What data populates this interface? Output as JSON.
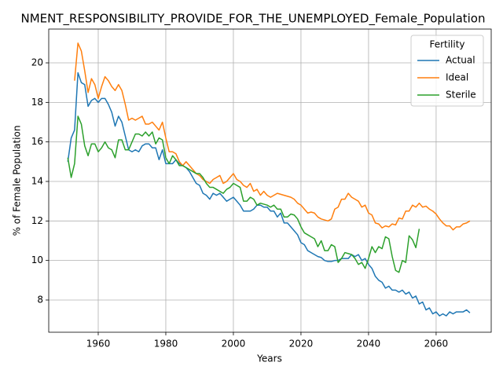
{
  "chart_data": {
    "type": "line",
    "title": "NMENT_RESPONSIBILITY_PROVIDE_FOR_THE_UNEMPLOYED_Female_Population",
    "xlabel": "Years",
    "ylabel": "% of Female Population",
    "legend_title": "Fertility",
    "legend": "upper right",
    "grid": true,
    "xlim": [
      1945.35,
      2076.3
    ],
    "ylim": [
      6.37,
      21.71
    ],
    "xticks": [
      1960,
      1980,
      2000,
      2020,
      2040,
      2060
    ],
    "yticks": [
      8,
      10,
      12,
      14,
      16,
      18,
      20
    ],
    "x": [
      1951,
      1952,
      1953,
      1954,
      1955,
      1956,
      1957,
      1958,
      1959,
      1960,
      1961,
      1962,
      1963,
      1964,
      1965,
      1966,
      1967,
      1968,
      1969,
      1970,
      1971,
      1972,
      1973,
      1974,
      1975,
      1976,
      1977,
      1978,
      1979,
      1980,
      1981,
      1982,
      1983,
      1984,
      1985,
      1986,
      1987,
      1988,
      1989,
      1990,
      1991,
      1992,
      1993,
      1994,
      1995,
      1996,
      1997,
      1998,
      1999,
      2000,
      2001,
      2002,
      2003,
      2004,
      2005,
      2006,
      2007,
      2008,
      2009,
      2010,
      2011,
      2012,
      2013,
      2014,
      2015,
      2016,
      2017,
      2018,
      2019,
      2020,
      2021,
      2022,
      2023,
      2024,
      2025,
      2026,
      2027,
      2028,
      2029,
      2030,
      2031,
      2032,
      2033,
      2034,
      2035,
      2036,
      2037,
      2038,
      2039,
      2040,
      2041,
      2042,
      2043,
      2044,
      2045,
      2046,
      2047,
      2048,
      2049,
      2050,
      2051,
      2052,
      2053,
      2054,
      2055,
      2056,
      2057,
      2058,
      2059,
      2060,
      2061,
      2062,
      2063,
      2064,
      2065,
      2066,
      2067,
      2068,
      2069,
      2070
    ],
    "series": [
      {
        "name": "Actual",
        "color": "#1f77b4",
        "values": [
          15.0,
          16.2,
          16.6,
          19.5,
          19.0,
          18.9,
          17.8,
          18.1,
          18.2,
          18.0,
          18.2,
          18.2,
          17.9,
          17.5,
          16.8,
          17.3,
          17.0,
          16.3,
          15.6,
          15.5,
          15.6,
          15.5,
          15.8,
          15.9,
          15.9,
          15.7,
          15.7,
          15.1,
          15.6,
          14.9,
          14.9,
          14.9,
          15.1,
          14.9,
          14.8,
          14.7,
          14.5,
          14.2,
          13.9,
          13.8,
          13.4,
          13.3,
          13.1,
          13.4,
          13.3,
          13.4,
          13.2,
          13.0,
          13.1,
          13.2,
          13.0,
          12.8,
          12.5,
          12.5,
          12.5,
          12.6,
          12.8,
          12.8,
          12.7,
          12.7,
          12.5,
          12.5,
          12.2,
          12.4,
          11.9,
          11.9,
          11.7,
          11.5,
          11.3,
          10.9,
          10.8,
          10.5,
          10.4,
          10.3,
          10.2,
          10.15,
          10.0,
          9.95,
          9.95,
          10.0,
          10.0,
          10.1,
          10.1,
          10.1,
          10.3,
          10.2,
          10.3,
          10.0,
          10.1,
          9.8,
          9.6,
          9.2,
          9.0,
          8.9,
          8.6,
          8.7,
          8.5,
          8.5,
          8.4,
          8.5,
          8.3,
          8.4,
          8.1,
          8.2,
          7.8,
          7.9,
          7.5,
          7.6,
          7.3,
          7.4,
          7.2,
          7.3,
          7.2,
          7.4,
          7.3,
          7.4,
          7.4,
          7.4,
          7.5,
          7.35
        ]
      },
      {
        "name": "Ideal",
        "color": "#ff7f0e",
        "values": [
          null,
          null,
          19.1,
          21.0,
          20.6,
          19.6,
          18.5,
          19.2,
          18.9,
          18.2,
          18.8,
          19.3,
          19.1,
          18.8,
          18.6,
          18.9,
          18.6,
          17.9,
          17.1,
          17.2,
          17.1,
          17.2,
          17.3,
          16.9,
          16.9,
          17.0,
          16.8,
          16.6,
          17.0,
          16.2,
          15.5,
          15.5,
          15.4,
          15.0,
          14.8,
          15.0,
          14.8,
          14.6,
          14.4,
          14.3,
          14.1,
          14.0,
          13.9,
          14.1,
          14.2,
          14.3,
          13.9,
          14.0,
          14.2,
          14.4,
          14.1,
          14.0,
          13.8,
          13.7,
          13.9,
          13.5,
          13.6,
          13.3,
          13.5,
          13.3,
          13.2,
          13.3,
          13.4,
          13.35,
          13.3,
          13.25,
          13.2,
          13.1,
          12.9,
          12.8,
          12.6,
          12.4,
          12.45,
          12.4,
          12.2,
          12.1,
          12.05,
          12.0,
          12.1,
          12.6,
          12.7,
          13.1,
          13.1,
          13.4,
          13.2,
          13.1,
          13.0,
          12.7,
          12.8,
          12.4,
          12.3,
          11.9,
          11.85,
          11.65,
          11.75,
          11.7,
          11.85,
          11.8,
          12.15,
          12.1,
          12.5,
          12.5,
          12.8,
          12.7,
          12.9,
          12.7,
          12.75,
          12.6,
          12.5,
          12.35,
          12.1,
          11.9,
          11.75,
          11.75,
          11.55,
          11.7,
          11.7,
          11.85,
          11.9,
          12.0
        ]
      },
      {
        "name": "Sterile",
        "color": "#2ca02c",
        "values": [
          15.2,
          14.2,
          14.9,
          17.3,
          16.9,
          15.8,
          15.3,
          15.9,
          15.9,
          15.5,
          15.7,
          16.0,
          15.7,
          15.6,
          15.2,
          16.1,
          16.1,
          15.6,
          15.6,
          16.0,
          16.4,
          16.4,
          16.3,
          16.5,
          16.3,
          16.5,
          15.9,
          16.2,
          16.1,
          15.2,
          14.9,
          15.3,
          15.1,
          14.8,
          14.8,
          14.7,
          14.6,
          14.5,
          14.4,
          14.4,
          14.2,
          13.9,
          13.7,
          13.7,
          13.6,
          13.5,
          13.4,
          13.6,
          13.7,
          13.9,
          13.8,
          13.7,
          13.0,
          13.0,
          13.2,
          13.1,
          12.8,
          12.9,
          12.85,
          12.8,
          12.7,
          12.8,
          12.6,
          12.6,
          12.2,
          12.2,
          12.35,
          12.3,
          12.1,
          11.7,
          11.4,
          11.3,
          11.2,
          11.1,
          10.7,
          11.0,
          10.5,
          10.5,
          10.8,
          10.7,
          9.9,
          10.1,
          10.4,
          10.35,
          10.3,
          10.1,
          9.8,
          9.9,
          9.6,
          10.1,
          10.7,
          10.4,
          10.7,
          10.6,
          11.2,
          11.1,
          10.2,
          9.5,
          9.4,
          10.0,
          9.9,
          11.25,
          11.05,
          10.65,
          11.6,
          null,
          null,
          null,
          null,
          null,
          null,
          null,
          null,
          null,
          null,
          null,
          null,
          null,
          null,
          null
        ]
      }
    ]
  }
}
